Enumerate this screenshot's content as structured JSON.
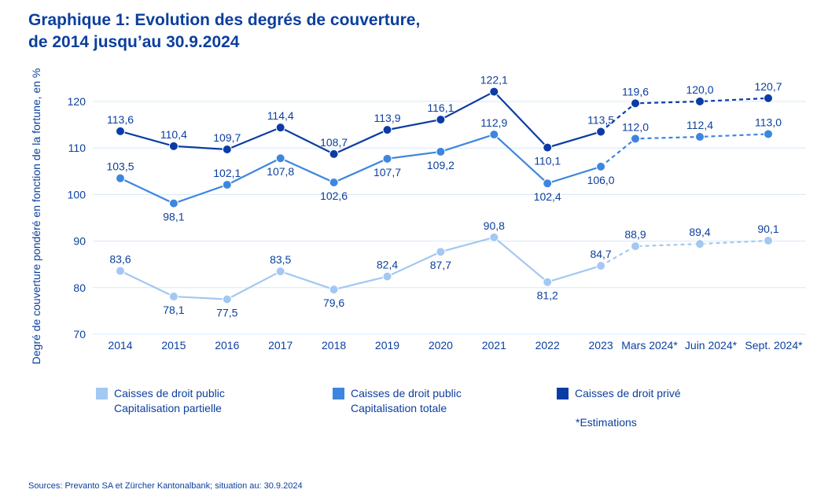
{
  "title_line1": "Graphique 1: Evolution des degrés de couverture,",
  "title_line2": "de 2014 jusqu’au 30.9.2024",
  "note": "*Estimations",
  "source": "Sources: Prevanto SA et Zürcher Kantonalbank; situation au: 30.9.2024",
  "colors": {
    "partielle": "#a3c8f2",
    "totale": "#3d86e0",
    "prive": "#0b3ca6",
    "grid": "#d6e8f9",
    "text": "#0b3f9e"
  },
  "chart_data": {
    "type": "line",
    "title": "Graphique 1: Evolution des degrés de couverture, de 2014 jusqu’au 30.9.2024",
    "xlabel": "",
    "ylabel": "Degré de couverture pondéré en fonction de la fortune, en %",
    "ylim": [
      70,
      125
    ],
    "yticks": [
      70,
      80,
      90,
      100,
      110,
      120
    ],
    "grid": true,
    "legend_position": "bottom",
    "categories": [
      "2014",
      "2015",
      "2016",
      "2017",
      "2018",
      "2019",
      "2020",
      "2021",
      "2022",
      "2023",
      "Mars 2024*",
      "Juin 2024*",
      "Sept. 2024*"
    ],
    "estimate_start_index": 9,
    "series": [
      {
        "key": "partielle",
        "name": "Caisses de droit public\nCapitalisation partielle",
        "values": [
          83.6,
          78.1,
          77.5,
          83.5,
          79.6,
          82.4,
          87.7,
          90.8,
          81.2,
          84.7,
          88.9,
          89.4,
          90.1
        ],
        "labels": [
          "83,6",
          "78,1",
          "77,5",
          "83,5",
          "79,6",
          "82,4",
          "87,7",
          "90,8",
          "81,2",
          "84,7",
          "88,9",
          "89,4",
          "90,1"
        ],
        "label_pos": [
          "above",
          "below",
          "below",
          "above",
          "below",
          "above",
          "below",
          "above",
          "below",
          "above",
          "above",
          "above",
          "above"
        ]
      },
      {
        "key": "totale",
        "name": "Caisses de droit public\nCapitalisation totale",
        "values": [
          103.5,
          98.1,
          102.1,
          107.8,
          102.6,
          107.7,
          109.2,
          112.9,
          102.4,
          106.0,
          112.0,
          112.4,
          113.0
        ],
        "labels": [
          "103,5",
          "98,1",
          "102,1",
          "107,8",
          "102,6",
          "107,7",
          "109,2",
          "112,9",
          "102,4",
          "106,0",
          "112,0",
          "112,4",
          "113,0"
        ],
        "label_pos": [
          "above",
          "below",
          "above",
          "below",
          "below",
          "below",
          "below",
          "above",
          "below",
          "below",
          "above",
          "above",
          "above"
        ]
      },
      {
        "key": "prive",
        "name": "Caisses de droit privé",
        "values": [
          113.6,
          110.4,
          109.7,
          114.4,
          108.7,
          113.9,
          116.1,
          122.1,
          110.1,
          113.5,
          119.6,
          120.0,
          120.7
        ],
        "labels": [
          "113,6",
          "110,4",
          "109,7",
          "114,4",
          "108,7",
          "113,9",
          "116,1",
          "122,1",
          "110,1",
          "113,5",
          "119,6",
          "120,0",
          "120,7"
        ],
        "label_pos": [
          "above",
          "above",
          "above",
          "above",
          "above",
          "above",
          "above",
          "above",
          "below",
          "above",
          "above",
          "above",
          "above"
        ]
      }
    ]
  }
}
